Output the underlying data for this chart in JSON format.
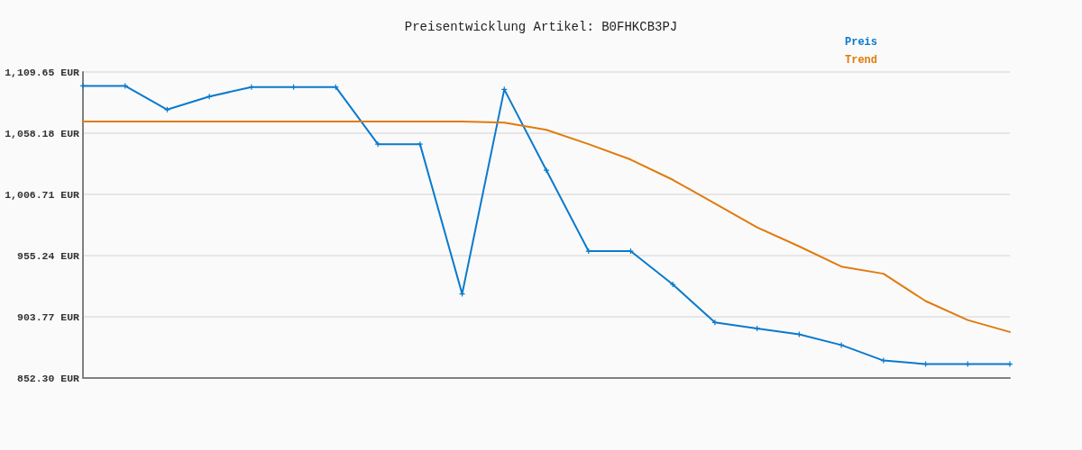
{
  "chart_data": {
    "type": "line",
    "title": "Preisentwicklung Artikel: B0FHKCB3PJ",
    "categories": [
      null,
      null,
      null,
      null,
      null,
      null,
      null,
      null,
      null,
      null,
      null,
      null,
      null,
      null,
      null,
      null,
      null,
      null,
      null,
      null,
      null,
      null,
      null
    ],
    "series": [
      {
        "name": "Preis",
        "color": "#0a7acc",
        "marker": "cross",
        "values": [
          1098,
          1098,
          1078,
          1089,
          1097,
          1097,
          1097,
          1049,
          1049,
          923,
          1095,
          1027,
          959,
          959,
          931,
          899,
          894,
          889,
          880,
          867,
          864,
          864,
          864
        ]
      },
      {
        "name": "Trend",
        "color": "#e07b0e",
        "marker": "none",
        "values": [
          1068,
          1068,
          1068,
          1068,
          1068,
          1068,
          1068,
          1068,
          1068,
          1068,
          1067,
          1061,
          1049,
          1036,
          1019,
          999,
          979,
          963,
          946,
          940,
          917,
          901,
          891
        ]
      }
    ],
    "ylim": [
      852.3,
      1109.65
    ],
    "yticks": [
      {
        "value": 852.3,
        "label": "852.30 EUR"
      },
      {
        "value": 903.77,
        "label": "903.77 EUR"
      },
      {
        "value": 955.24,
        "label": "955.24 EUR"
      },
      {
        "value": 1006.71,
        "label": "1,006.71 EUR"
      },
      {
        "value": 1058.18,
        "label": "1,058.18 EUR"
      },
      {
        "value": 1109.65,
        "label": "1,109.65 EUR"
      }
    ],
    "grid": "y",
    "legend": "top right",
    "tick_labels": "y"
  }
}
